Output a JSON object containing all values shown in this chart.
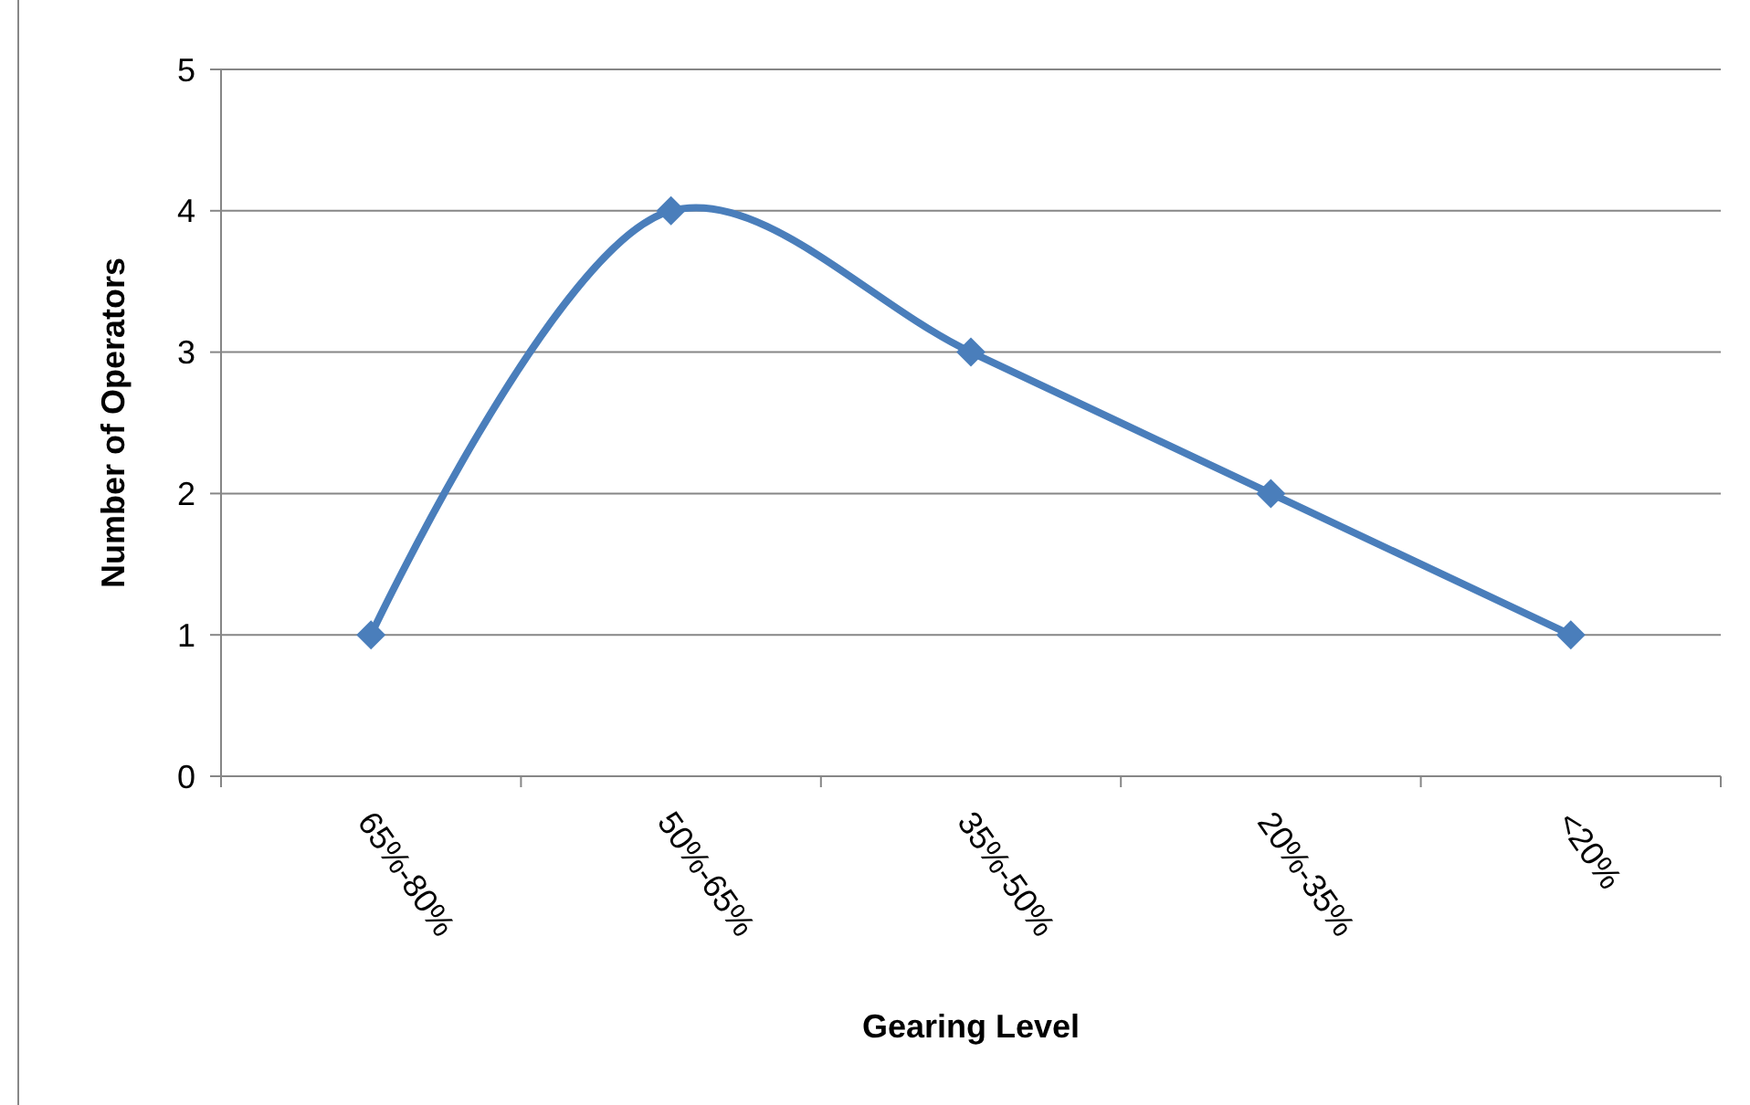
{
  "chart_data": {
    "type": "line",
    "xlabel": "Gearing Level",
    "ylabel": "Number of Operators",
    "categories": [
      "65%-80%",
      "50%-65%",
      "35%-50%",
      "20%-35%",
      "<20%"
    ],
    "series": [
      {
        "color": "#4a7ebb",
        "values": [
          1,
          4,
          3,
          2,
          1
        ]
      }
    ],
    "ylim": [
      0,
      5
    ],
    "yticks": [
      0,
      1,
      2,
      3,
      4,
      5
    ],
    "grid": "y",
    "marker": "diamond",
    "line_style": "solid"
  }
}
